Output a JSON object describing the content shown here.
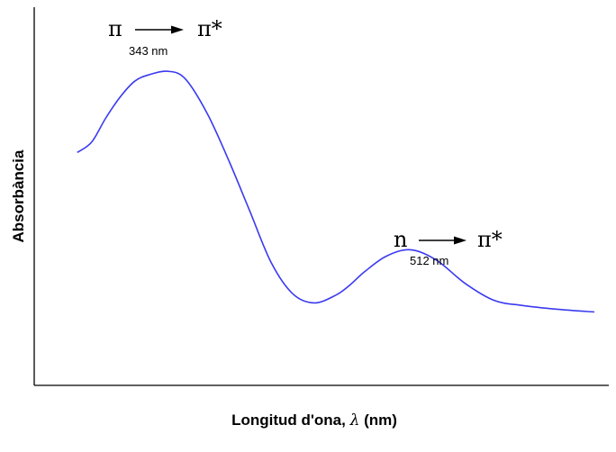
{
  "chart_data": {
    "type": "line",
    "xlabel_main": "Longitud d'ona,",
    "xlabel_symbol": "λ",
    "xlabel_unit": "(nm)",
    "ylabel": "Absorbància",
    "grid": false,
    "legend": "none",
    "xlim": [
      250,
      650
    ],
    "ylim": [
      0,
      1
    ],
    "series": [
      {
        "color": "#3a3af0",
        "x": [
          280,
          290,
          300,
          310,
          320,
          330,
          343,
          355,
          370,
          385,
          400,
          415,
          430,
          445,
          460,
          470,
          480,
          495,
          512,
          530,
          550,
          570,
          590,
          615,
          640
        ],
        "y": [
          0.655,
          0.695,
          0.79,
          0.87,
          0.93,
          0.955,
          0.968,
          0.94,
          0.81,
          0.63,
          0.43,
          0.23,
          0.11,
          0.075,
          0.105,
          0.145,
          0.195,
          0.255,
          0.28,
          0.24,
          0.15,
          0.085,
          0.065,
          0.05,
          0.04
        ]
      }
    ],
    "annotations": [
      {
        "from": "π",
        "to": "π*",
        "label": "343 nm",
        "x": 343
      },
      {
        "from": "n",
        "to": "π*",
        "label": "512 nm",
        "x": 512
      }
    ]
  }
}
